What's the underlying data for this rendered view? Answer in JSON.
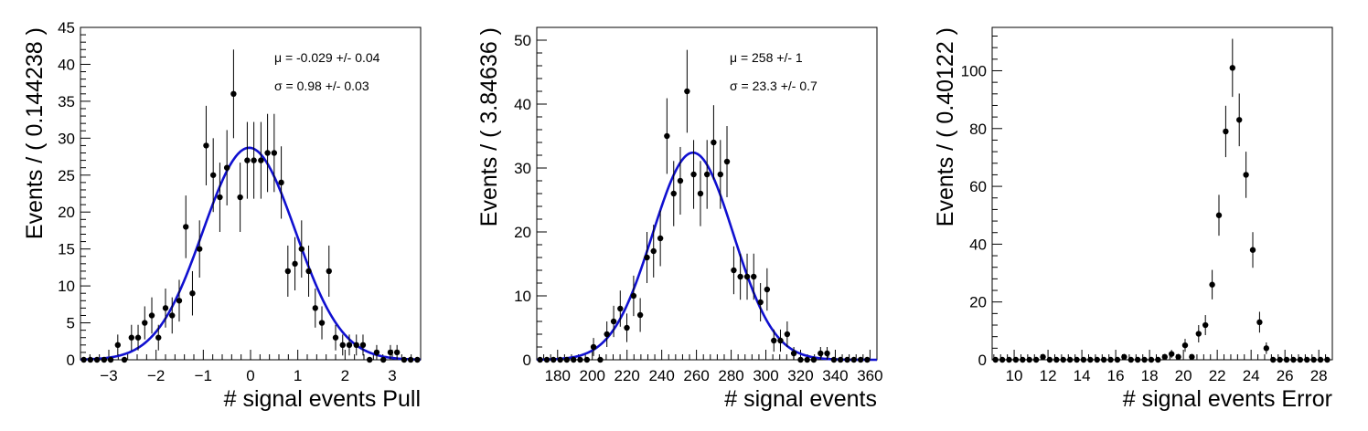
{
  "chart_data": [
    {
      "type": "scatter",
      "xlabel": "# signal events Pull",
      "ylabel": "Events / ( 0.144238 )",
      "xlim": [
        -3.6,
        3.6
      ],
      "ylim": [
        0,
        45
      ],
      "xticks": [
        -3,
        -2,
        -1,
        0,
        1,
        2,
        3
      ],
      "yticks": [
        0,
        5,
        10,
        15,
        20,
        25,
        30,
        35,
        40,
        45
      ],
      "grid": false,
      "annotations": [
        "μ = -0.029 +/- 0.04",
        "σ =  0.98 +/- 0.03"
      ],
      "series": [
        {
          "x": [
            -3.53,
            -3.39,
            -3.25,
            -3.1,
            -2.96,
            -2.81,
            -2.67,
            -2.52,
            -2.38,
            -2.24,
            -2.09,
            -1.95,
            -1.8,
            -1.66,
            -1.51,
            -1.37,
            -1.23,
            -1.08,
            -0.94,
            -0.79,
            -0.65,
            -0.5,
            -0.36,
            -0.22,
            -0.07,
            0.07,
            0.22,
            0.36,
            0.5,
            0.65,
            0.79,
            0.94,
            1.08,
            1.23,
            1.37,
            1.51,
            1.66,
            1.8,
            1.95,
            2.09,
            2.24,
            2.38,
            2.52,
            2.67,
            2.81,
            2.96,
            3.1,
            3.25,
            3.39,
            3.53
          ],
          "y": [
            0,
            0,
            0,
            0,
            0,
            2,
            0,
            3,
            3,
            5,
            6,
            3,
            7,
            6,
            8,
            18,
            9,
            15,
            29,
            25,
            22,
            26,
            36,
            22,
            27,
            27,
            27,
            28,
            28,
            24,
            12,
            13,
            15,
            12,
            7,
            5,
            12,
            3,
            2,
            2,
            2,
            2,
            0,
            1,
            0,
            1,
            1,
            0,
            0,
            0
          ]
        },
        {
          "name": "Gaussian fit",
          "type": "line",
          "mu": -0.029,
          "sigma": 0.98,
          "peak": 28.7
        }
      ]
    },
    {
      "type": "scatter",
      "xlabel": "# signal events",
      "ylabel": "Events / ( 3.84636 )",
      "xlim": [
        168,
        364
      ],
      "ylim": [
        0,
        52
      ],
      "xticks": [
        180,
        200,
        220,
        240,
        260,
        280,
        300,
        320,
        340,
        360
      ],
      "yticks": [
        0,
        10,
        20,
        30,
        40,
        50
      ],
      "grid": false,
      "annotations": [
        "μ =  258 +/- 1",
        "σ =  23.3 +/- 0.7"
      ],
      "series": [
        {
          "x": [
            169.9,
            173.8,
            177.6,
            181.5,
            185.3,
            189.2,
            193.0,
            196.9,
            200.7,
            204.6,
            208.4,
            212.3,
            216.1,
            219.9,
            223.8,
            227.6,
            231.5,
            235.3,
            239.2,
            243.0,
            246.9,
            250.7,
            254.6,
            258.4,
            262.3,
            266.1,
            269.9,
            273.8,
            277.6,
            281.5,
            285.3,
            289.2,
            293.0,
            296.9,
            300.7,
            304.6,
            308.4,
            312.3,
            316.1,
            320.0,
            323.8,
            327.6,
            331.5,
            335.3,
            339.2,
            343.0,
            346.9,
            350.7,
            354.6,
            358.4
          ],
          "y": [
            0,
            0,
            0,
            0,
            0,
            0,
            0,
            0,
            2,
            0,
            4,
            6,
            8,
            5,
            10,
            7,
            16,
            17,
            19,
            35,
            26,
            28,
            42,
            29,
            26,
            29,
            34,
            29,
            31,
            14,
            13,
            13,
            13,
            9,
            11,
            3,
            3,
            4,
            1,
            0,
            0,
            0,
            1,
            1,
            0,
            0,
            0,
            0,
            0,
            0
          ]
        },
        {
          "name": "Gaussian fit",
          "type": "line",
          "mu": 258,
          "sigma": 23.3,
          "peak": 32.4
        }
      ]
    },
    {
      "type": "scatter",
      "xlabel": "# signal events Error",
      "ylabel": "Events / ( 0.40122 )",
      "xlim": [
        8.7,
        28.8
      ],
      "ylim": [
        0,
        115
      ],
      "xticks": [
        10,
        12,
        14,
        16,
        18,
        20,
        22,
        24,
        26,
        28
      ],
      "yticks": [
        0,
        20,
        40,
        60,
        80,
        100
      ],
      "grid": false,
      "series": [
        {
          "x": [
            8.9,
            9.3,
            9.7,
            10.1,
            10.5,
            10.9,
            11.3,
            11.7,
            12.1,
            12.5,
            12.9,
            13.3,
            13.7,
            14.1,
            14.5,
            14.9,
            15.3,
            15.7,
            16.1,
            16.5,
            16.9,
            17.3,
            17.7,
            18.1,
            18.5,
            18.9,
            19.3,
            19.7,
            20.1,
            20.5,
            20.9,
            21.3,
            21.7,
            22.1,
            22.5,
            22.9,
            23.3,
            23.7,
            24.1,
            24.5,
            24.9,
            25.3,
            25.7,
            26.1,
            26.5,
            26.9,
            27.3,
            27.7,
            28.1,
            28.5
          ],
          "y": [
            0,
            0,
            0,
            0,
            0,
            0,
            0,
            1,
            0,
            0,
            0,
            0,
            0,
            0,
            0,
            0,
            0,
            0,
            0,
            1,
            0,
            0,
            0,
            0,
            0,
            1,
            2,
            1,
            5,
            1,
            9,
            12,
            26,
            50,
            79,
            101,
            83,
            64,
            38,
            13,
            4,
            0,
            0,
            0,
            0,
            0,
            0,
            0,
            0,
            0
          ]
        }
      ]
    }
  ]
}
